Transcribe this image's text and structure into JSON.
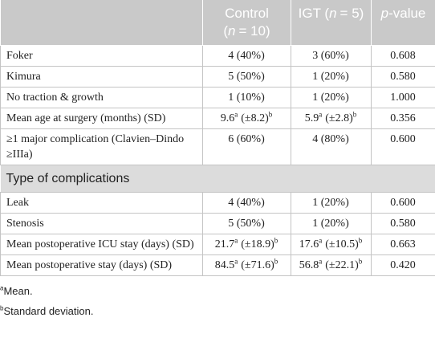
{
  "table": {
    "header": {
      "control": [
        "Control",
        "(",
        "n",
        "= 10)"
      ],
      "igt": [
        "IGT (",
        "n",
        "= 5)"
      ],
      "pvalue": [
        "p",
        "-value"
      ]
    },
    "rows": [
      [
        "Foker",
        "4 (40%)",
        "3 (60%)",
        "0.608"
      ],
      [
        "Kimura",
        "5 (50%)",
        "1 (20%)",
        "0.580"
      ],
      [
        "No traction & growth",
        "1 (10%)",
        "1 (20%)",
        "1.000"
      ],
      [
        "Mean age at surgery (months) (SD)",
        [
          "9.6",
          "a",
          "(±8.2)",
          "b"
        ],
        [
          "5.9",
          "a",
          "(±2.8)",
          "b"
        ],
        "0.356"
      ],
      [
        "≥1 major complication (Clavien–Dindo ≥IIIa)",
        "6 (60%)",
        "4 (80%)",
        "0.600"
      ]
    ],
    "section": "Type of complications",
    "rows2": [
      [
        "Leak",
        "4 (40%)",
        "1 (20%)",
        "0.600"
      ],
      [
        "Stenosis",
        "5 (50%)",
        "1 (20%)",
        "0.580"
      ],
      [
        "Mean postoperative ICU stay (days) (SD)",
        [
          "21.7",
          "a",
          "(±18.9)",
          "b"
        ],
        [
          "17.6",
          "a",
          "(±10.5)",
          "b"
        ],
        "0.663"
      ],
      [
        "Mean postoperative stay (days) (SD)",
        [
          "84.5",
          "a",
          "(±71.6)",
          "b"
        ],
        [
          "56.8",
          "a",
          "(±22.1)",
          "b"
        ],
        "0.420"
      ]
    ]
  },
  "footnotes": [
    [
      "a",
      "Mean."
    ],
    [
      "b",
      "Standard deviation."
    ]
  ]
}
